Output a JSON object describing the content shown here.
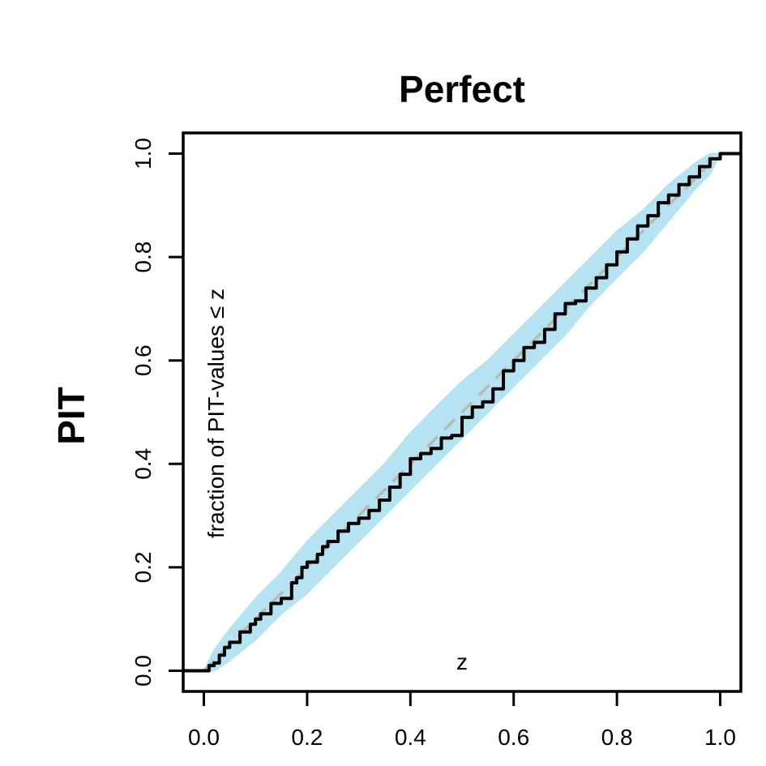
{
  "chart_data": {
    "type": "line",
    "title": "Perfect",
    "side_label": "PIT",
    "xlabel": "z",
    "ylabel": "fraction of PIT-values ≤ z",
    "xlim": [
      -0.04,
      1.04
    ],
    "ylim": [
      -0.04,
      1.04
    ],
    "x_ticks": [
      "0.0",
      "0.2",
      "0.4",
      "0.6",
      "0.8",
      "1.0"
    ],
    "y_ticks": [
      "0.0",
      "0.2",
      "0.4",
      "0.6",
      "0.8",
      "1.0"
    ],
    "grid": false,
    "colors": {
      "band": "#b5e3f2",
      "reference": "#b8b8b8",
      "ecdf": "#000000",
      "axes": "#000000"
    },
    "reference_line": {
      "x": [
        0,
        1
      ],
      "y": [
        0,
        1
      ],
      "style": "dashed"
    },
    "confidence_band": {
      "x": [
        0,
        0.02,
        0.05,
        0.1,
        0.15,
        0.2,
        0.25,
        0.3,
        0.35,
        0.4,
        0.45,
        0.5,
        0.55,
        0.6,
        0.65,
        0.7,
        0.75,
        0.8,
        0.85,
        0.9,
        0.95,
        0.98,
        1.0
      ],
      "lower": [
        0.0,
        0.0,
        0.02,
        0.06,
        0.11,
        0.15,
        0.2,
        0.25,
        0.3,
        0.35,
        0.4,
        0.45,
        0.5,
        0.55,
        0.6,
        0.65,
        0.71,
        0.76,
        0.81,
        0.87,
        0.93,
        0.96,
        1.0
      ],
      "upper": [
        0.0,
        0.04,
        0.08,
        0.14,
        0.19,
        0.25,
        0.3,
        0.35,
        0.4,
        0.46,
        0.51,
        0.56,
        0.6,
        0.65,
        0.7,
        0.75,
        0.8,
        0.85,
        0.89,
        0.94,
        0.98,
        1.0,
        1.0
      ]
    },
    "series": [
      {
        "x": [
          -0.04,
          0.0,
          0.01,
          0.02,
          0.03,
          0.04,
          0.05,
          0.07,
          0.09,
          0.1,
          0.11,
          0.13,
          0.15,
          0.17,
          0.18,
          0.19,
          0.2,
          0.22,
          0.23,
          0.24,
          0.26,
          0.28,
          0.3,
          0.32,
          0.34,
          0.36,
          0.38,
          0.4,
          0.42,
          0.44,
          0.46,
          0.48,
          0.5,
          0.52,
          0.54,
          0.56,
          0.58,
          0.6,
          0.62,
          0.64,
          0.66,
          0.68,
          0.7,
          0.72,
          0.74,
          0.76,
          0.78,
          0.8,
          0.82,
          0.84,
          0.86,
          0.88,
          0.9,
          0.92,
          0.94,
          0.96,
          0.98,
          1.0,
          1.04
        ],
        "y": [
          0.0,
          0.0,
          0.01,
          0.015,
          0.03,
          0.045,
          0.055,
          0.075,
          0.09,
          0.1,
          0.11,
          0.13,
          0.14,
          0.17,
          0.18,
          0.2,
          0.21,
          0.225,
          0.24,
          0.25,
          0.27,
          0.285,
          0.295,
          0.31,
          0.33,
          0.355,
          0.38,
          0.41,
          0.42,
          0.43,
          0.45,
          0.455,
          0.49,
          0.51,
          0.52,
          0.545,
          0.58,
          0.6,
          0.625,
          0.635,
          0.66,
          0.69,
          0.71,
          0.715,
          0.74,
          0.76,
          0.785,
          0.81,
          0.835,
          0.86,
          0.88,
          0.905,
          0.92,
          0.94,
          0.955,
          0.975,
          0.99,
          1.0,
          1.0
        ]
      }
    ]
  }
}
